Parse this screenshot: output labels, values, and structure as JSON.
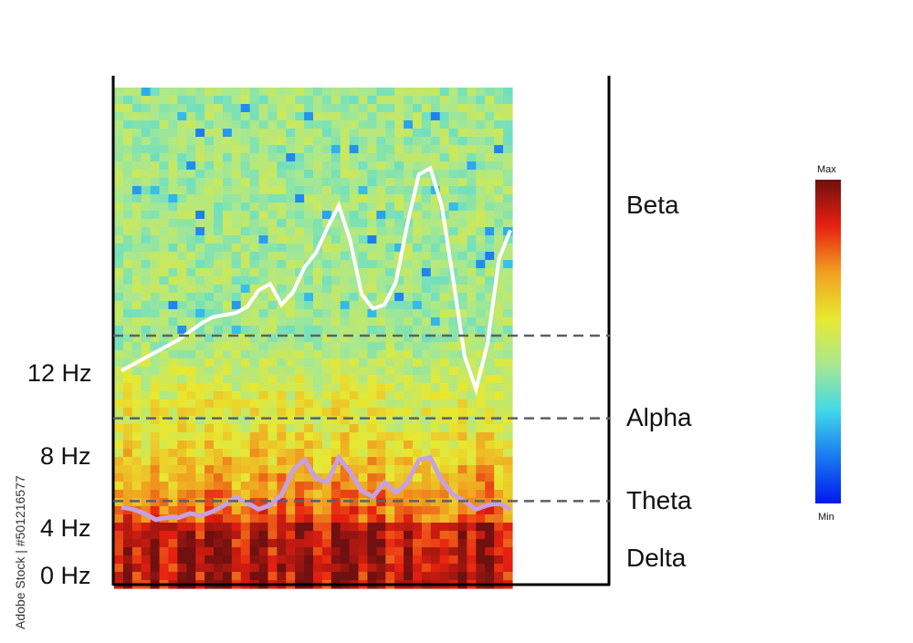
{
  "chart_data": {
    "type": "heatmap",
    "title": "",
    "xlabel": "",
    "ylabel": "",
    "y_ticks": [
      "12 Hz",
      "8 Hz",
      "4 Hz",
      "0 Hz"
    ],
    "y_tick_values": [
      12,
      8,
      4,
      0
    ],
    "bands": [
      {
        "name": "Beta",
        "from_hz": 12,
        "to_hz": 24
      },
      {
        "name": "Alpha",
        "from_hz": 8,
        "to_hz": 12
      },
      {
        "name": "Theta",
        "from_hz": 4,
        "to_hz": 8
      },
      {
        "name": "Delta",
        "from_hz": 0,
        "to_hz": 4
      }
    ],
    "band_boundaries_hz": [
      12,
      8,
      4
    ],
    "ylim": [
      0,
      24
    ],
    "colorbar": {
      "max_label": "Max",
      "min_label": "Min",
      "colors": [
        "#0018f0",
        "#1a78f0",
        "#40d8e8",
        "#a8e890",
        "#e8e830",
        "#f0a020",
        "#e82010",
        "#701010"
      ]
    },
    "series": [
      {
        "color": "#ffffff",
        "values_hz": [
          10.3,
          10.6,
          10.9,
          11.2,
          11.5,
          11.8,
          12.2,
          12.6,
          12.9,
          13.0,
          13.1,
          13.4,
          14.2,
          14.5,
          13.5,
          14.1,
          15.3,
          16.0,
          17.2,
          18.3,
          16.6,
          14.0,
          13.3,
          13.5,
          14.6,
          17.4,
          19.8,
          20.1,
          18.3,
          14.7,
          11.0,
          9.4,
          11.6,
          15.7,
          17.1
        ]
      },
      {
        "color": "#c8a0e0",
        "values_hz": [
          3.7,
          3.6,
          3.4,
          3.1,
          3.2,
          3.2,
          3.4,
          3.3,
          3.5,
          3.8,
          4.2,
          3.9,
          3.6,
          3.8,
          4.3,
          5.5,
          6.0,
          5.1,
          4.9,
          6.1,
          5.4,
          4.5,
          4.2,
          4.9,
          4.4,
          4.9,
          6.0,
          6.1,
          5.0,
          4.3,
          4.0,
          3.6,
          3.8,
          3.9,
          3.6
        ]
      }
    ]
  },
  "watermark": {
    "text": "Adobe Stock | #501216577"
  }
}
